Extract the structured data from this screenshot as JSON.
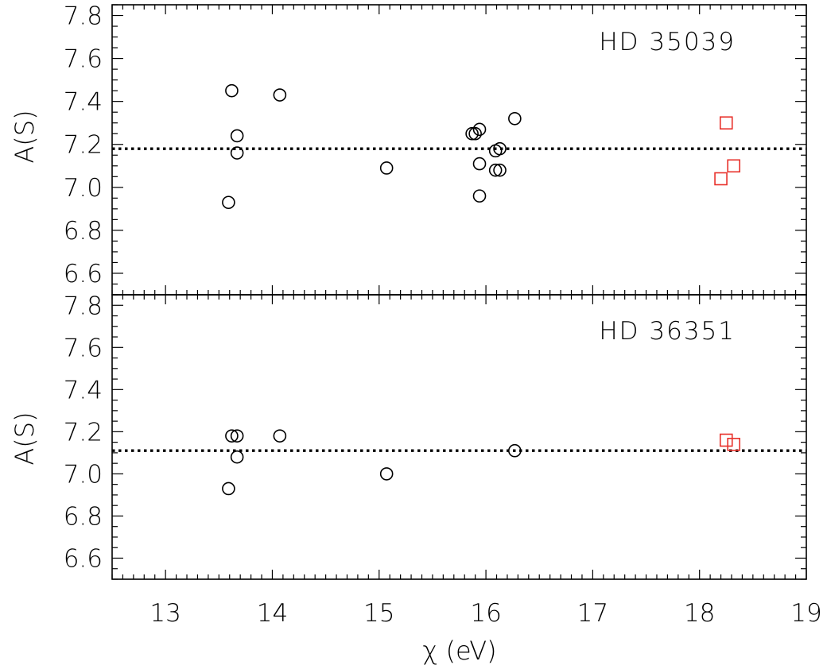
{
  "chart_data": {
    "type": "scatter",
    "xlabel": "χ (eV)",
    "xlim": [
      12.5,
      19
    ],
    "x_ticks": [
      13,
      14,
      15,
      16,
      17,
      18,
      19
    ],
    "x_tick_labels": [
      "13",
      "14",
      "15",
      "16",
      "17",
      "18",
      "19"
    ],
    "grid": false,
    "colors": {
      "circle_series": "#000000",
      "square_series": "#e8312b",
      "mean_line": "#000000"
    },
    "panels": [
      {
        "star": "HD 35039",
        "ylabel": "A(S)",
        "ylim": [
          6.5,
          7.85
        ],
        "y_ticks": [
          6.6,
          6.8,
          7.0,
          7.2,
          7.4,
          7.6,
          7.8
        ],
        "y_tick_labels": [
          "6.6",
          "6.8",
          "7.0",
          "7.2",
          "7.4",
          "7.6",
          "7.8"
        ],
        "mean": 7.18,
        "series": [
          {
            "marker": "circle",
            "points": [
              [
                13.59,
                6.93
              ],
              [
                13.62,
                7.45
              ],
              [
                13.67,
                7.24
              ],
              [
                13.67,
                7.16
              ],
              [
                14.07,
                7.43
              ],
              [
                15.07,
                7.09
              ],
              [
                15.87,
                7.25
              ],
              [
                15.9,
                7.25
              ],
              [
                15.94,
                7.27
              ],
              [
                15.94,
                7.11
              ],
              [
                15.94,
                6.96
              ],
              [
                16.09,
                7.17
              ],
              [
                16.13,
                7.18
              ],
              [
                16.09,
                7.08
              ],
              [
                16.13,
                7.08
              ],
              [
                16.27,
                7.32
              ]
            ]
          },
          {
            "marker": "square",
            "points": [
              [
                18.25,
                7.3
              ],
              [
                18.2,
                7.04
              ],
              [
                18.32,
                7.1
              ]
            ]
          }
        ]
      },
      {
        "star": "HD 36351",
        "ylabel": "A(S)",
        "ylim": [
          6.5,
          7.85
        ],
        "y_ticks": [
          6.6,
          6.8,
          7.0,
          7.2,
          7.4,
          7.6,
          7.8
        ],
        "y_tick_labels": [
          "6.6",
          "6.8",
          "7.0",
          "7.2",
          "7.4",
          "7.6",
          "7.8"
        ],
        "mean": 7.11,
        "series": [
          {
            "marker": "circle",
            "points": [
              [
                13.59,
                6.93
              ],
              [
                13.62,
                7.18
              ],
              [
                13.67,
                7.18
              ],
              [
                13.67,
                7.08
              ],
              [
                14.07,
                7.18
              ],
              [
                15.07,
                7.0
              ],
              [
                16.27,
                7.11
              ]
            ]
          },
          {
            "marker": "square",
            "points": [
              [
                18.25,
                7.16
              ],
              [
                18.32,
                7.14
              ]
            ]
          }
        ]
      }
    ]
  }
}
